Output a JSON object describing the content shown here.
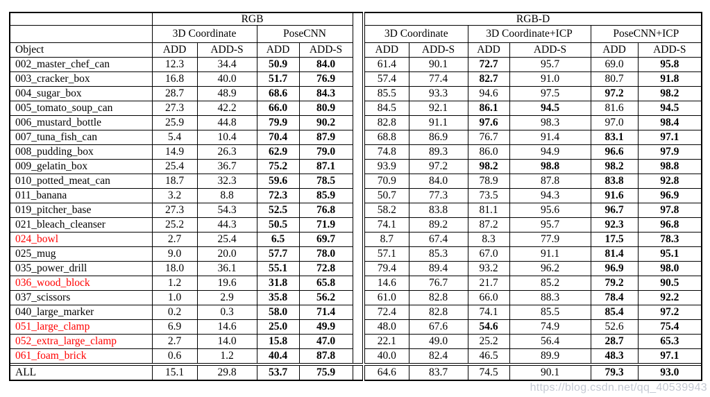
{
  "watermark": "https://blog.csdn.net/qq_40539943",
  "colors": {
    "highlight_red": "#ff0000",
    "text_black": "#000000",
    "watermark_gray": "#bac0cb"
  },
  "table": {
    "object_header": "Object",
    "all_row_label": "ALL",
    "group_headers": {
      "rgb": "RGB",
      "rgbd": "RGB-D"
    },
    "method_headers": {
      "rgb_3dc": "3D Coordinate",
      "rgb_posecnn": "PoseCNN",
      "rgbd_3dc": "3D Coordinate",
      "rgbd_3dc_icp": "3D Coordinate+ICP",
      "rgbd_posecnn_icp": "PoseCNN+ICP"
    },
    "metric_headers": {
      "add": "ADD",
      "adds": "ADD-S"
    },
    "rows": [
      {
        "object": "002_master_chef_can",
        "red": false,
        "values": [
          "12.3",
          "34.4",
          "50.9",
          "84.0",
          "61.4",
          "90.1",
          "72.7",
          "95.7",
          "69.0",
          "95.8"
        ],
        "bold": [
          2,
          3,
          6,
          9
        ]
      },
      {
        "object": "003_cracker_box",
        "red": false,
        "values": [
          "16.8",
          "40.0",
          "51.7",
          "76.9",
          "57.4",
          "77.4",
          "82.7",
          "91.0",
          "80.7",
          "91.8"
        ],
        "bold": [
          2,
          3,
          6,
          9
        ]
      },
      {
        "object": "004_sugar_box",
        "red": false,
        "values": [
          "28.7",
          "48.9",
          "68.6",
          "84.3",
          "85.5",
          "93.3",
          "94.6",
          "97.5",
          "97.2",
          "98.2"
        ],
        "bold": [
          2,
          3,
          8,
          9
        ]
      },
      {
        "object": "005_tomato_soup_can",
        "red": false,
        "values": [
          "27.3",
          "42.2",
          "66.0",
          "80.9",
          "84.5",
          "92.1",
          "86.1",
          "94.5",
          "81.6",
          "94.5"
        ],
        "bold": [
          2,
          3,
          6,
          7,
          9
        ]
      },
      {
        "object": "006_mustard_bottle",
        "red": false,
        "values": [
          "25.9",
          "44.8",
          "79.9",
          "90.2",
          "82.8",
          "91.1",
          "97.6",
          "98.3",
          "97.0",
          "98.4"
        ],
        "bold": [
          2,
          3,
          6,
          9
        ]
      },
      {
        "object": "007_tuna_fish_can",
        "red": false,
        "values": [
          "5.4",
          "10.4",
          "70.4",
          "87.9",
          "68.8",
          "86.9",
          "76.7",
          "91.4",
          "83.1",
          "97.1"
        ],
        "bold": [
          2,
          3,
          8,
          9
        ]
      },
      {
        "object": "008_pudding_box",
        "red": false,
        "values": [
          "14.9",
          "26.3",
          "62.9",
          "79.0",
          "74.8",
          "89.3",
          "86.0",
          "94.9",
          "96.6",
          "97.9"
        ],
        "bold": [
          2,
          3,
          8,
          9
        ]
      },
      {
        "object": "009_gelatin_box",
        "red": false,
        "values": [
          "25.4",
          "36.7",
          "75.2",
          "87.1",
          "93.9",
          "97.2",
          "98.2",
          "98.8",
          "98.2",
          "98.8"
        ],
        "bold": [
          2,
          3,
          6,
          7,
          8,
          9
        ]
      },
      {
        "object": "010_potted_meat_can",
        "red": false,
        "values": [
          "18.7",
          "32.3",
          "59.6",
          "78.5",
          "70.9",
          "84.0",
          "78.9",
          "87.8",
          "83.8",
          "92.8"
        ],
        "bold": [
          2,
          3,
          8,
          9
        ]
      },
      {
        "object": "011_banana",
        "red": false,
        "values": [
          "3.2",
          "8.8",
          "72.3",
          "85.9",
          "50.7",
          "77.3",
          "73.5",
          "94.3",
          "91.6",
          "96.9"
        ],
        "bold": [
          2,
          3,
          8,
          9
        ]
      },
      {
        "object": "019_pitcher_base",
        "red": false,
        "values": [
          "27.3",
          "54.3",
          "52.5",
          "76.8",
          "58.2",
          "83.8",
          "81.1",
          "95.6",
          "96.7",
          "97.8"
        ],
        "bold": [
          2,
          3,
          8,
          9
        ]
      },
      {
        "object": "021_bleach_cleanser",
        "red": false,
        "values": [
          "25.2",
          "44.3",
          "50.5",
          "71.9",
          "74.1",
          "89.2",
          "87.2",
          "95.7",
          "92.3",
          "96.8"
        ],
        "bold": [
          2,
          3,
          8,
          9
        ]
      },
      {
        "object": "024_bowl",
        "red": true,
        "values": [
          "2.7",
          "25.4",
          "6.5",
          "69.7",
          "8.7",
          "67.4",
          "8.3",
          "77.9",
          "17.5",
          "78.3"
        ],
        "bold": [
          2,
          3,
          8,
          9
        ]
      },
      {
        "object": "025_mug",
        "red": false,
        "values": [
          "9.0",
          "20.0",
          "57.7",
          "78.0",
          "57.1",
          "85.3",
          "67.0",
          "91.1",
          "81.4",
          "95.1"
        ],
        "bold": [
          2,
          3,
          8,
          9
        ]
      },
      {
        "object": "035_power_drill",
        "red": false,
        "values": [
          "18.0",
          "36.1",
          "55.1",
          "72.8",
          "79.4",
          "89.4",
          "93.2",
          "96.2",
          "96.9",
          "98.0"
        ],
        "bold": [
          2,
          3,
          8,
          9
        ]
      },
      {
        "object": "036_wood_block",
        "red": true,
        "values": [
          "1.2",
          "19.6",
          "31.8",
          "65.8",
          "14.6",
          "76.7",
          "21.7",
          "85.2",
          "79.2",
          "90.5"
        ],
        "bold": [
          2,
          3,
          8,
          9
        ]
      },
      {
        "object": "037_scissors",
        "red": false,
        "values": [
          "1.0",
          "2.9",
          "35.8",
          "56.2",
          "61.0",
          "82.8",
          "66.0",
          "88.3",
          "78.4",
          "92.2"
        ],
        "bold": [
          2,
          3,
          8,
          9
        ]
      },
      {
        "object": "040_large_marker",
        "red": false,
        "values": [
          "0.2",
          "0.3",
          "58.0",
          "71.4",
          "72.4",
          "82.8",
          "74.1",
          "85.5",
          "85.4",
          "97.2"
        ],
        "bold": [
          2,
          3,
          8,
          9
        ]
      },
      {
        "object": "051_large_clamp",
        "red": true,
        "values": [
          "6.9",
          "14.6",
          "25.0",
          "49.9",
          "48.0",
          "67.6",
          "54.6",
          "74.9",
          "52.6",
          "75.4"
        ],
        "bold": [
          2,
          3,
          6,
          9
        ]
      },
      {
        "object": "052_extra_large_clamp",
        "red": true,
        "values": [
          "2.7",
          "14.0",
          "15.8",
          "47.0",
          "22.1",
          "49.0",
          "25.2",
          "56.4",
          "28.7",
          "65.3"
        ],
        "bold": [
          2,
          3,
          8,
          9
        ]
      },
      {
        "object": "061_foam_brick",
        "red": true,
        "values": [
          "0.6",
          "1.2",
          "40.4",
          "87.8",
          "40.0",
          "82.4",
          "46.5",
          "89.9",
          "48.3",
          "97.1"
        ],
        "bold": [
          2,
          3,
          8,
          9
        ]
      },
      {
        "object": "ALL",
        "red": false,
        "divider_above": true,
        "values": [
          "15.1",
          "29.8",
          "53.7",
          "75.9",
          "64.6",
          "83.7",
          "74.5",
          "90.1",
          "79.3",
          "93.0"
        ],
        "bold": [
          2,
          3,
          8,
          9
        ]
      }
    ]
  }
}
